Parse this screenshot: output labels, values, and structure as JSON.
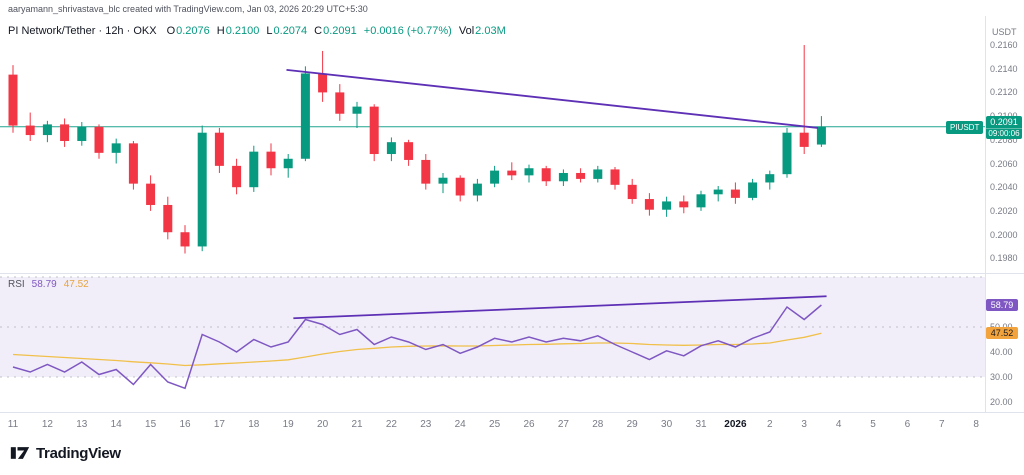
{
  "header": {
    "attribution": "aaryamann_shrivastava_blc created with TradingView.com, Jan 03, 2026 20:29 UTC+5:30"
  },
  "legend": {
    "symbol_title": "PI Network/Tether · 12h · OKX",
    "ohlc": [
      {
        "label": "O",
        "value": "0.2076"
      },
      {
        "label": "H",
        "value": "0.2100"
      },
      {
        "label": "L",
        "value": "0.2074"
      },
      {
        "label": "C",
        "value": "0.2091"
      }
    ],
    "change": "+0.0016 (+0.77%)",
    "volume_label": "Vol",
    "volume_value": "2.03M"
  },
  "price_axis": {
    "currency": "USDT",
    "labels": [
      "0.2160",
      "0.2140",
      "0.2120",
      "0.2100",
      "0.2080",
      "0.2060",
      "0.2040",
      "0.2020",
      "0.2000",
      "0.1980"
    ],
    "symbol_badge": "PIUSDT",
    "last_price": "0.2091",
    "countdown": "09:00:06"
  },
  "rsi": {
    "title": "RSI",
    "value": "58.79",
    "ma_value": "47.52",
    "axis_labels": [
      "50.00",
      "40.00",
      "30.00",
      "20.00"
    ]
  },
  "time_axis": {
    "labels": [
      "11",
      "12",
      "13",
      "14",
      "15",
      "16",
      "17",
      "18",
      "19",
      "20",
      "21",
      "22",
      "23",
      "24",
      "25",
      "26",
      "27",
      "28",
      "29",
      "30",
      "31",
      "2026",
      "2",
      "3",
      "4",
      "5",
      "6",
      "7",
      "8"
    ],
    "highlight": "2026"
  },
  "footer": {
    "logo_text": "TradingView"
  },
  "chart_data": {
    "type": "candlestick",
    "symbol": "PIUSDT",
    "interval": "12h",
    "exchange": "OKX",
    "price_range": [
      0.198,
      0.216
    ],
    "rsi_range": [
      20,
      70
    ],
    "colors": {
      "up": "#089981",
      "down": "#f23645",
      "trendline": "#5d30b5",
      "rsi_line": "#7e57c2",
      "rsi_ma_line": "#f0c04a",
      "rsi_band": "rgba(126,87,194,0.10)",
      "last_price_line": "#089981"
    },
    "candles": [
      [
        0.2135,
        0.2143,
        0.2086,
        0.2092
      ],
      [
        0.2092,
        0.2103,
        0.2079,
        0.2084
      ],
      [
        0.2084,
        0.2096,
        0.2078,
        0.2093
      ],
      [
        0.2093,
        0.2098,
        0.2074,
        0.2079
      ],
      [
        0.2079,
        0.2095,
        0.2075,
        0.2091
      ],
      [
        0.2091,
        0.2093,
        0.2064,
        0.2069
      ],
      [
        0.2069,
        0.2081,
        0.206,
        0.2077
      ],
      [
        0.2077,
        0.2079,
        0.2038,
        0.2043
      ],
      [
        0.2043,
        0.205,
        0.202,
        0.2025
      ],
      [
        0.2025,
        0.2032,
        0.1996,
        0.2002
      ],
      [
        0.2002,
        0.2008,
        0.1984,
        0.199
      ],
      [
        0.199,
        0.2092,
        0.1986,
        0.2086
      ],
      [
        0.2086,
        0.209,
        0.2052,
        0.2058
      ],
      [
        0.2058,
        0.2064,
        0.2034,
        0.204
      ],
      [
        0.204,
        0.2075,
        0.2036,
        0.207
      ],
      [
        0.207,
        0.2077,
        0.205,
        0.2056
      ],
      [
        0.2056,
        0.2068,
        0.2048,
        0.2064
      ],
      [
        0.2064,
        0.2142,
        0.2062,
        0.2136
      ],
      [
        0.2136,
        0.2155,
        0.2112,
        0.212
      ],
      [
        0.212,
        0.2127,
        0.2096,
        0.2102
      ],
      [
        0.2102,
        0.2112,
        0.209,
        0.2108
      ],
      [
        0.2108,
        0.211,
        0.2062,
        0.2068
      ],
      [
        0.2068,
        0.2082,
        0.2062,
        0.2078
      ],
      [
        0.2078,
        0.208,
        0.2058,
        0.2063
      ],
      [
        0.2063,
        0.2068,
        0.2038,
        0.2043
      ],
      [
        0.2043,
        0.2052,
        0.2035,
        0.2048
      ],
      [
        0.2048,
        0.205,
        0.2028,
        0.2033
      ],
      [
        0.2033,
        0.2047,
        0.2028,
        0.2043
      ],
      [
        0.2043,
        0.2058,
        0.204,
        0.2054
      ],
      [
        0.2054,
        0.2061,
        0.2046,
        0.205
      ],
      [
        0.205,
        0.2059,
        0.2044,
        0.2056
      ],
      [
        0.2056,
        0.2058,
        0.2041,
        0.2045
      ],
      [
        0.2045,
        0.2055,
        0.2041,
        0.2052
      ],
      [
        0.2052,
        0.2056,
        0.2044,
        0.2047
      ],
      [
        0.2047,
        0.2058,
        0.2044,
        0.2055
      ],
      [
        0.2055,
        0.2057,
        0.2038,
        0.2042
      ],
      [
        0.2042,
        0.2047,
        0.2026,
        0.203
      ],
      [
        0.203,
        0.2035,
        0.2016,
        0.2021
      ],
      [
        0.2021,
        0.2032,
        0.2015,
        0.2028
      ],
      [
        0.2028,
        0.2033,
        0.2018,
        0.2023
      ],
      [
        0.2023,
        0.2037,
        0.202,
        0.2034
      ],
      [
        0.2034,
        0.2041,
        0.2028,
        0.2038
      ],
      [
        0.2038,
        0.2044,
        0.2026,
        0.2031
      ],
      [
        0.2031,
        0.2047,
        0.2029,
        0.2044
      ],
      [
        0.2044,
        0.2054,
        0.2038,
        0.2051
      ],
      [
        0.2051,
        0.209,
        0.2048,
        0.2086
      ],
      [
        0.2086,
        0.216,
        0.2068,
        0.2074
      ],
      [
        0.2076,
        0.21,
        0.2074,
        0.2091
      ]
    ],
    "rsi": [
      34,
      32,
      35,
      32,
      36,
      31,
      33,
      27,
      35,
      28,
      25.5,
      47,
      44,
      40,
      45,
      42,
      44,
      53,
      51,
      47,
      49,
      43,
      46,
      44,
      41,
      43,
      39.5,
      42,
      45.5,
      44,
      46,
      44,
      45.5,
      44.5,
      46.5,
      43,
      40,
      37,
      40.5,
      38.5,
      42.5,
      44.5,
      42,
      45.5,
      48,
      58,
      53,
      58.79
    ],
    "rsi_ma": [
      39,
      38.6,
      38.2,
      37.8,
      37.4,
      37,
      36.6,
      36.1,
      35.7,
      35.2,
      34.6,
      34.9,
      35.3,
      35.6,
      36,
      36.4,
      36.9,
      38,
      39.2,
      40.2,
      41,
      41.5,
      42,
      42.3,
      42.4,
      42.5,
      42.4,
      42.4,
      42.6,
      42.8,
      43,
      43.1,
      43.3,
      43.4,
      43.6,
      43.6,
      43.4,
      43,
      42.8,
      42.7,
      42.8,
      43,
      43,
      43.2,
      43.6,
      44.8,
      45.9,
      47.52
    ],
    "price_trendline": {
      "c1": 15.9,
      "p1": 0.2139,
      "c2": 46.8,
      "p2": 0.209
    },
    "rsi_trendline": {
      "c1": 16.3,
      "v1": 53.5,
      "c2": 47.3,
      "v2": 62.3
    },
    "rsi_levels": [
      70,
      50,
      30
    ]
  }
}
